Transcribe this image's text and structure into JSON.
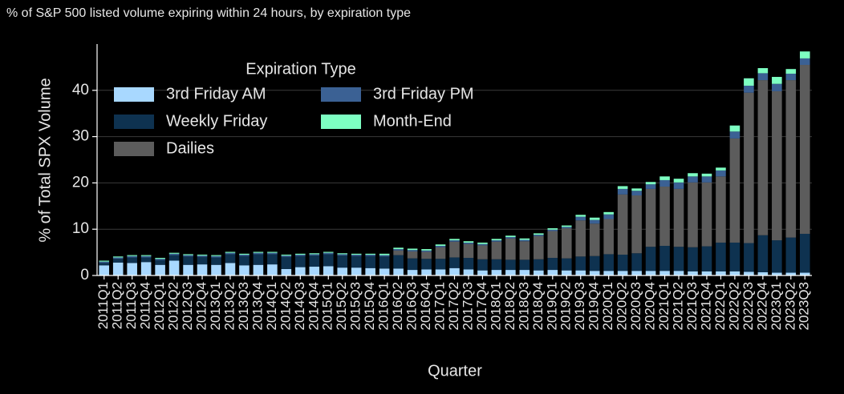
{
  "chart_data": {
    "type": "bar",
    "stacked": true,
    "title": "% of S&P 500 listed volume expiring within 24 hours, by expiration type",
    "x_label": "Quarter",
    "y_label": "% of Total SPX Volume",
    "legend_title": "Expiration Type",
    "legend": "upper left",
    "grid": true,
    "ylim": [
      0,
      50
    ],
    "yticks": [
      0,
      10,
      20,
      30,
      40
    ],
    "categories": [
      "2011Q1",
      "2011Q2",
      "2011Q3",
      "2011Q4",
      "2012Q1",
      "2012Q2",
      "2012Q3",
      "2012Q4",
      "2013Q1",
      "2013Q2",
      "2013Q3",
      "2013Q4",
      "2014Q1",
      "2014Q2",
      "2014Q3",
      "2014Q4",
      "2015Q1",
      "2015Q2",
      "2015Q3",
      "2015Q4",
      "2016Q1",
      "2016Q2",
      "2016Q3",
      "2016Q4",
      "2017Q1",
      "2017Q2",
      "2017Q3",
      "2017Q4",
      "2018Q1",
      "2018Q2",
      "2018Q3",
      "2018Q4",
      "2019Q1",
      "2019Q2",
      "2019Q3",
      "2019Q4",
      "2020Q1",
      "2020Q2",
      "2020Q3",
      "2020Q4",
      "2021Q1",
      "2021Q2",
      "2021Q3",
      "2021Q4",
      "2022Q1",
      "2022Q2",
      "2022Q3",
      "2022Q4",
      "2023Q1",
      "2023Q2",
      "2023Q3"
    ],
    "series": [
      {
        "name": "3rd Friday AM",
        "color": "#a8d8ff",
        "values": [
          2.2,
          2.8,
          2.7,
          2.9,
          2.3,
          3.2,
          2.3,
          2.4,
          2.3,
          2.7,
          2.2,
          2.3,
          2.4,
          1.4,
          1.8,
          1.9,
          2.0,
          1.7,
          1.7,
          1.6,
          1.5,
          1.5,
          1.2,
          1.3,
          1.3,
          1.6,
          1.3,
          1.1,
          1.2,
          1.2,
          1.2,
          1.1,
          1.2,
          1.1,
          1.1,
          1.0,
          1.0,
          1.0,
          1.0,
          1.0,
          1.0,
          1.0,
          0.9,
          0.9,
          0.9,
          0.9,
          0.8,
          0.7,
          0.6,
          0.6,
          0.6
        ]
      },
      {
        "name": "Weekly Friday",
        "color": "#0e3250",
        "values": [
          0.5,
          0.8,
          1.2,
          1.0,
          1.0,
          1.2,
          1.8,
          1.6,
          1.6,
          1.9,
          2.0,
          2.3,
          2.2,
          2.6,
          2.4,
          2.4,
          2.6,
          2.6,
          2.5,
          2.6,
          2.6,
          2.9,
          2.5,
          2.3,
          2.3,
          2.3,
          2.5,
          2.4,
          2.3,
          2.2,
          2.2,
          2.4,
          2.6,
          2.6,
          3.0,
          3.2,
          3.6,
          3.5,
          3.8,
          5.2,
          5.4,
          5.2,
          5.2,
          5.4,
          6.2,
          6.2,
          6.2,
          8.0,
          7.0,
          7.6,
          8.4
        ]
      },
      {
        "name": "Dailies",
        "color": "#5c5c5c",
        "values": [
          0,
          0,
          0,
          0,
          0,
          0,
          0,
          0,
          0,
          0,
          0,
          0,
          0,
          0,
          0,
          0,
          0,
          0,
          0,
          0,
          0,
          1.0,
          1.5,
          1.5,
          2.5,
          3.4,
          3.0,
          3.0,
          3.8,
          4.6,
          4.0,
          5.0,
          5.8,
          6.5,
          7.8,
          7.0,
          7.6,
          13.0,
          12.5,
          12.5,
          12.8,
          12.5,
          14.0,
          13.8,
          14.3,
          22.5,
          32.5,
          33.5,
          32.2,
          34.0,
          36.5
        ]
      },
      {
        "name": "3rd Friday PM",
        "color": "#3b6194",
        "values": [
          0.3,
          0.3,
          0.3,
          0.3,
          0.3,
          0.3,
          0.3,
          0.3,
          0.3,
          0.3,
          0.3,
          0.3,
          0.3,
          0.3,
          0.3,
          0.3,
          0.3,
          0.3,
          0.3,
          0.3,
          0.3,
          0.3,
          0.3,
          0.3,
          0.3,
          0.3,
          0.3,
          0.3,
          0.3,
          0.3,
          0.3,
          0.3,
          0.3,
          0.3,
          0.8,
          0.8,
          1.0,
          1.2,
          1.0,
          1.0,
          1.4,
          1.4,
          1.3,
          1.3,
          1.3,
          1.5,
          1.5,
          1.5,
          1.6,
          1.4,
          1.4
        ]
      },
      {
        "name": "Month-End",
        "color": "#7dffc2",
        "values": [
          0.2,
          0.2,
          0.2,
          0.2,
          0.2,
          0.2,
          0.2,
          0.2,
          0.2,
          0.2,
          0.2,
          0.2,
          0.2,
          0.2,
          0.2,
          0.2,
          0.2,
          0.2,
          0.2,
          0.2,
          0.3,
          0.3,
          0.3,
          0.3,
          0.3,
          0.3,
          0.3,
          0.3,
          0.3,
          0.3,
          0.3,
          0.3,
          0.3,
          0.3,
          0.4,
          0.5,
          0.5,
          0.6,
          0.5,
          0.5,
          0.8,
          0.8,
          0.7,
          0.6,
          0.6,
          1.3,
          1.6,
          1.1,
          1.5,
          1.0,
          1.5
        ]
      }
    ]
  }
}
